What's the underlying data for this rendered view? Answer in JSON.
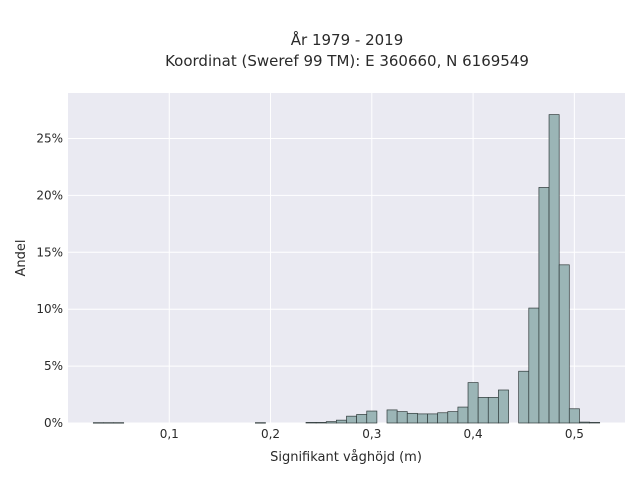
{
  "chart_data": {
    "type": "bar",
    "title_lines": [
      "År 1979 - 2019",
      "Koordinat (Sweref 99 TM): E 360660, N 6169549"
    ],
    "xlabel": "Signifikant våghöjd (m)",
    "ylabel": "Andel",
    "xlim": [
      0.0,
      0.55
    ],
    "ylim": [
      0,
      0.29
    ],
    "x_ticks": [
      0.1,
      0.2,
      0.3,
      0.4,
      0.5
    ],
    "x_tick_labels": [
      "0,1",
      "0,2",
      "0,3",
      "0,4",
      "0,5"
    ],
    "y_ticks": [
      0,
      0.05,
      0.1,
      0.15,
      0.2,
      0.25
    ],
    "y_tick_labels": [
      "0%",
      "5%",
      "10%",
      "15%",
      "20%",
      "25%"
    ],
    "grid": true,
    "bin_width": 0.01,
    "bins": [
      {
        "x0": 0.025,
        "value": 0.0003
      },
      {
        "x0": 0.035,
        "value": 0.0003
      },
      {
        "x0": 0.045,
        "value": 0.0003
      },
      {
        "x0": 0.185,
        "value": 0.0003
      },
      {
        "x0": 0.235,
        "value": 0.0005
      },
      {
        "x0": 0.245,
        "value": 0.0005
      },
      {
        "x0": 0.255,
        "value": 0.0012
      },
      {
        "x0": 0.265,
        "value": 0.0025
      },
      {
        "x0": 0.275,
        "value": 0.006
      },
      {
        "x0": 0.285,
        "value": 0.0075
      },
      {
        "x0": 0.295,
        "value": 0.0105
      },
      {
        "x0": 0.315,
        "value": 0.0115
      },
      {
        "x0": 0.325,
        "value": 0.01
      },
      {
        "x0": 0.335,
        "value": 0.0085
      },
      {
        "x0": 0.345,
        "value": 0.008
      },
      {
        "x0": 0.355,
        "value": 0.008
      },
      {
        "x0": 0.365,
        "value": 0.009
      },
      {
        "x0": 0.375,
        "value": 0.01
      },
      {
        "x0": 0.385,
        "value": 0.014
      },
      {
        "x0": 0.395,
        "value": 0.0355
      },
      {
        "x0": 0.405,
        "value": 0.0225
      },
      {
        "x0": 0.415,
        "value": 0.0225
      },
      {
        "x0": 0.425,
        "value": 0.029
      },
      {
        "x0": 0.445,
        "value": 0.0455
      },
      {
        "x0": 0.455,
        "value": 0.101
      },
      {
        "x0": 0.465,
        "value": 0.207
      },
      {
        "x0": 0.475,
        "value": 0.271
      },
      {
        "x0": 0.485,
        "value": 0.139
      },
      {
        "x0": 0.495,
        "value": 0.0125
      },
      {
        "x0": 0.505,
        "value": 0.0008
      },
      {
        "x0": 0.515,
        "value": 0.0005
      }
    ],
    "colors": {
      "bar_fill": "#9bb5b6",
      "bar_stroke": "#2f3a3a",
      "plot_bg": "#eaeaf2",
      "grid": "#ffffff"
    }
  }
}
